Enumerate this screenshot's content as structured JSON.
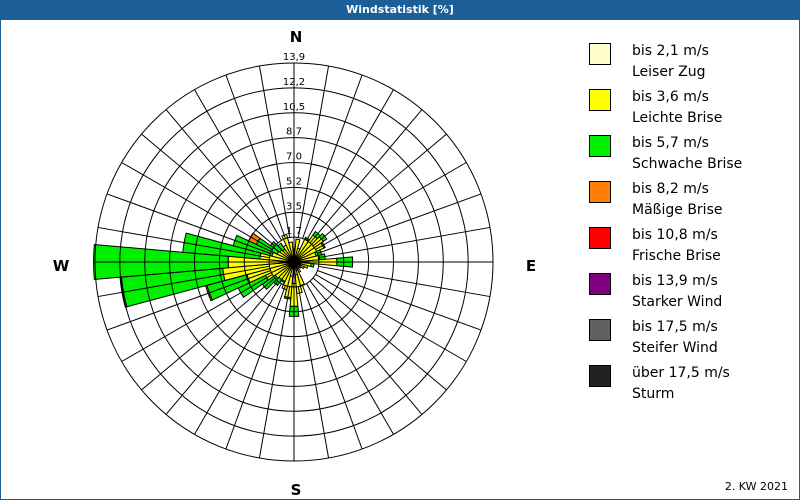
{
  "window": {
    "title": "Windstatistik [%]"
  },
  "footer": {
    "period": "2. KW 2021"
  },
  "compass": {
    "N": "N",
    "E": "E",
    "S": "S",
    "W": "W"
  },
  "legend": [
    {
      "range": "bis 2,1 m/s",
      "name": "Leiser Zug",
      "color": "#ffffcc"
    },
    {
      "range": "bis 3,6 m/s",
      "name": "Leichte Brise",
      "color": "#ffff00"
    },
    {
      "range": "bis 5,7 m/s",
      "name": "Schwache Brise",
      "color": "#00ee00"
    },
    {
      "range": "bis 8,2 m/s",
      "name": "Mäßige Brise",
      "color": "#ff8000"
    },
    {
      "range": "bis 10,8 m/s",
      "name": "Frische Brise",
      "color": "#ff0000"
    },
    {
      "range": "bis 13,9 m/s",
      "name": "Starker Wind",
      "color": "#800080"
    },
    {
      "range": "bis 17,5 m/s",
      "name": "Steifer Wind",
      "color": "#606060"
    },
    {
      "range": "über 17,5 m/s",
      "name": "Sturm",
      "color": "#202020"
    }
  ],
  "chart_data": {
    "type": "wind_rose",
    "title": "Windstatistik [%]",
    "subtitle": "2. KW 2021",
    "radial_unit": "%",
    "ring_labels": [
      "1,7",
      "3,5",
      "5,2",
      "7,0",
      "8,7",
      "10,5",
      "12,2",
      "13,9"
    ],
    "rmax": 13.9,
    "sector_width_deg": 10,
    "legend_position": "right",
    "series_names": [
      "bis 2,1 m/s",
      "bis 3,6 m/s",
      "bis 5,7 m/s",
      "bis 8,2 m/s",
      "bis 10,8 m/s",
      "bis 13,9 m/s",
      "bis 17,5 m/s",
      "über 17,5 m/s"
    ],
    "directions_deg": [
      0,
      10,
      20,
      30,
      40,
      50,
      60,
      70,
      80,
      90,
      100,
      110,
      120,
      130,
      140,
      150,
      160,
      170,
      180,
      190,
      200,
      210,
      220,
      230,
      240,
      250,
      260,
      270,
      280,
      290,
      300,
      310,
      320,
      330,
      340,
      350
    ],
    "cumulative": [
      [
        0.4,
        0.9,
        0.9,
        0.9
      ],
      [
        0.4,
        1.6,
        1.6,
        1.6
      ],
      [
        0.4,
        1.0,
        1.0,
        1.0
      ],
      [
        0.4,
        1.8,
        1.9,
        1.9
      ],
      [
        0.4,
        2.3,
        2.6,
        2.6
      ],
      [
        0.4,
        2.5,
        2.8,
        2.8
      ],
      [
        0.3,
        2.3,
        2.4,
        2.4
      ],
      [
        0.3,
        1.6,
        2.0,
        2.0
      ],
      [
        0.3,
        1.8,
        2.2,
        2.2
      ],
      [
        0.4,
        3.0,
        4.1,
        4.1
      ],
      [
        0.3,
        1.2,
        1.4,
        1.4
      ],
      [
        0.3,
        1.0,
        1.0,
        1.0
      ],
      [
        0.3,
        0.8,
        0.8,
        0.8
      ],
      [
        0.3,
        0.6,
        0.6,
        0.6
      ],
      [
        0.3,
        0.5,
        0.5,
        0.5
      ],
      [
        0.3,
        0.8,
        0.8,
        0.8
      ],
      [
        0.6,
        1.7,
        1.7,
        1.7
      ],
      [
        0.9,
        2.2,
        2.2,
        2.2
      ],
      [
        1.5,
        3.1,
        3.8,
        3.8
      ],
      [
        1.0,
        2.5,
        2.6,
        2.6
      ],
      [
        0.5,
        2.0,
        2.0,
        2.0
      ],
      [
        0.4,
        1.5,
        1.6,
        1.6
      ],
      [
        0.4,
        1.5,
        2.0,
        2.0
      ],
      [
        0.4,
        1.6,
        2.7,
        2.7
      ],
      [
        0.4,
        2.2,
        4.3,
        4.3
      ],
      [
        0.4,
        3.4,
        6.3,
        6.4
      ],
      [
        0.4,
        5.0,
        12.1,
        12.2
      ],
      [
        0.4,
        4.6,
        14.0,
        14.0
      ],
      [
        0.4,
        2.4,
        7.8,
        7.8
      ],
      [
        0.4,
        1.6,
        4.4,
        4.4
      ],
      [
        0.4,
        1.3,
        2.9,
        3.5
      ],
      [
        0.4,
        1.2,
        2.0,
        2.0
      ],
      [
        0.4,
        1.1,
        1.6,
        1.6
      ],
      [
        0.4,
        1.3,
        1.3,
        1.3
      ],
      [
        0.4,
        2.0,
        2.0,
        2.0
      ],
      [
        0.4,
        1.4,
        1.4,
        1.4
      ]
    ]
  }
}
